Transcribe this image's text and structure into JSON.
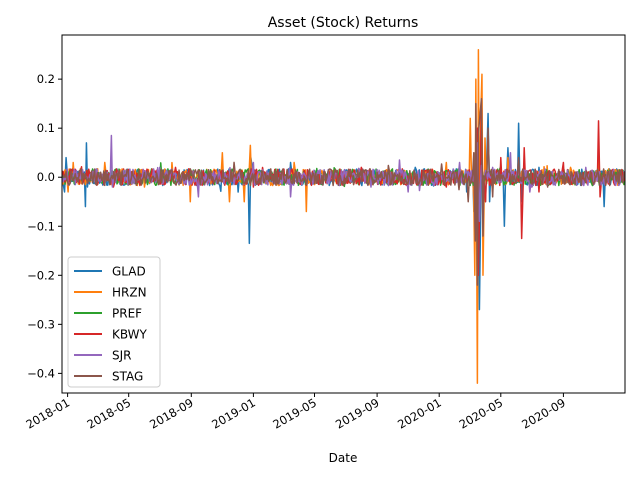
{
  "chart_data": {
    "type": "line",
    "title": "Asset (Stock) Returns",
    "xlabel": "Date",
    "ylabel": "",
    "x_range": [
      "2017-12-21",
      "2020-12-31"
    ],
    "ylim": [
      -0.44,
      0.29
    ],
    "x_ticks": [
      "2018-01",
      "2018-05",
      "2018-09",
      "2019-01",
      "2019-05",
      "2019-09",
      "2020-01",
      "2020-05",
      "2020-09"
    ],
    "y_ticks": [
      "0.2",
      "0.1",
      "0.0",
      "−0.1",
      "−0.2",
      "−0.3",
      "−0.4"
    ],
    "y_tick_values": [
      0.2,
      0.1,
      0.0,
      -0.1,
      -0.2,
      -0.3,
      -0.4
    ],
    "grid": false,
    "legend_position": "lower-left",
    "series": [
      {
        "name": "GLAD",
        "color": "#1f77b4",
        "points": [
          [
            "2017-12-21",
            0.0
          ],
          [
            "2017-12-26",
            -0.03
          ],
          [
            "2017-12-29",
            0.04
          ],
          [
            "2018-01-05",
            0.0
          ],
          [
            "2018-01-25",
            0.01
          ],
          [
            "2018-02-05",
            -0.06
          ],
          [
            "2018-02-07",
            0.07
          ],
          [
            "2018-02-09",
            -0.02
          ],
          [
            "2018-03-15",
            0.01
          ],
          [
            "2018-06-01",
            -0.01
          ],
          [
            "2018-09-01",
            0.01
          ],
          [
            "2018-12-24",
            -0.135
          ],
          [
            "2018-12-27",
            0.04
          ],
          [
            "2018-12-31",
            0.01
          ],
          [
            "2019-03-15",
            0.03
          ],
          [
            "2019-06-01",
            -0.01
          ],
          [
            "2019-09-01",
            0.01
          ],
          [
            "2019-11-15",
            0.02
          ],
          [
            "2019-12-31",
            0.0
          ],
          [
            "2020-02-24",
            -0.03
          ],
          [
            "2020-03-09",
            -0.07
          ],
          [
            "2020-03-12",
            0.05
          ],
          [
            "2020-03-16",
            -0.2
          ],
          [
            "2020-03-18",
            0.04
          ],
          [
            "2020-03-20",
            -0.27
          ],
          [
            "2020-03-24",
            0.05
          ],
          [
            "2020-03-26",
            0.0
          ],
          [
            "2020-04-01",
            -0.05
          ],
          [
            "2020-04-06",
            0.13
          ],
          [
            "2020-04-09",
            -0.05
          ],
          [
            "2020-04-30",
            0.02
          ],
          [
            "2020-05-08",
            -0.1
          ],
          [
            "2020-05-15",
            0.06
          ],
          [
            "2020-06-05",
            0.11
          ],
          [
            "2020-06-12",
            -0.05
          ],
          [
            "2020-07-15",
            0.02
          ],
          [
            "2020-09-01",
            0.01
          ],
          [
            "2020-11-20",
            -0.06
          ],
          [
            "2020-12-31",
            0.0
          ]
        ]
      },
      {
        "name": "HRZN",
        "color": "#ff7f0e",
        "points": [
          [
            "2017-12-21",
            0.0
          ],
          [
            "2018-01-02",
            -0.03
          ],
          [
            "2018-01-12",
            0.03
          ],
          [
            "2018-03-15",
            0.03
          ],
          [
            "2018-06-01",
            -0.02
          ],
          [
            "2018-08-30",
            -0.05
          ],
          [
            "2018-11-01",
            0.05
          ],
          [
            "2018-11-15",
            -0.05
          ],
          [
            "2018-12-14",
            -0.05
          ],
          [
            "2018-12-24",
            0.02
          ],
          [
            "2018-12-26",
            0.065
          ],
          [
            "2018-12-28",
            0.0
          ],
          [
            "2019-03-22",
            0.03
          ],
          [
            "2019-04-15",
            -0.07
          ],
          [
            "2019-06-01",
            0.01
          ],
          [
            "2019-09-01",
            -0.01
          ],
          [
            "2019-12-31",
            0.0
          ],
          [
            "2020-01-15",
            0.03
          ],
          [
            "2020-03-02",
            0.12
          ],
          [
            "2020-03-09",
            -0.05
          ],
          [
            "2020-03-11",
            -0.2
          ],
          [
            "2020-03-13",
            0.2
          ],
          [
            "2020-03-16",
            -0.42
          ],
          [
            "2020-03-18",
            0.26
          ],
          [
            "2020-03-20",
            -0.08
          ],
          [
            "2020-03-23",
            0.14
          ],
          [
            "2020-03-25",
            0.21
          ],
          [
            "2020-03-27",
            -0.2
          ],
          [
            "2020-03-31",
            0.08
          ],
          [
            "2020-04-15",
            -0.03
          ],
          [
            "2020-05-15",
            0.04
          ],
          [
            "2020-07-01",
            -0.02
          ],
          [
            "2020-09-15",
            0.02
          ],
          [
            "2020-11-09",
            0.04
          ],
          [
            "2020-12-31",
            0.0
          ]
        ]
      },
      {
        "name": "PREF",
        "color": "#2ca02c",
        "points": [
          [
            "2017-12-21",
            0.0
          ],
          [
            "2018-06-01",
            0.005
          ],
          [
            "2019-01-01",
            -0.005
          ],
          [
            "2019-09-01",
            0.005
          ],
          [
            "2020-03-12",
            -0.04
          ],
          [
            "2020-03-16",
            0.03
          ],
          [
            "2020-03-20",
            -0.05
          ],
          [
            "2020-04-15",
            0.01
          ],
          [
            "2020-12-31",
            0.0
          ]
        ]
      },
      {
        "name": "KBWY",
        "color": "#d62728",
        "points": [
          [
            "2017-12-21",
            0.0
          ],
          [
            "2018-04-01",
            -0.02
          ],
          [
            "2018-08-01",
            0.02
          ],
          [
            "2019-01-01",
            -0.02
          ],
          [
            "2019-08-01",
            0.02
          ],
          [
            "2020-01-15",
            -0.02
          ],
          [
            "2020-03-12",
            -0.12
          ],
          [
            "2020-03-16",
            0.1
          ],
          [
            "2020-03-18",
            -0.2
          ],
          [
            "2020-03-24",
            0.14
          ],
          [
            "2020-04-01",
            -0.05
          ],
          [
            "2020-05-01",
            0.04
          ],
          [
            "2020-06-11",
            -0.125
          ],
          [
            "2020-06-16",
            0.06
          ],
          [
            "2020-07-15",
            -0.03
          ],
          [
            "2020-09-01",
            0.03
          ],
          [
            "2020-11-09",
            0.115
          ],
          [
            "2020-11-12",
            -0.04
          ],
          [
            "2020-12-31",
            0.0
          ]
        ]
      },
      {
        "name": "SJR",
        "color": "#9467bd",
        "points": [
          [
            "2017-12-21",
            0.0
          ],
          [
            "2018-03-28",
            0.085
          ],
          [
            "2018-03-30",
            -0.02
          ],
          [
            "2018-07-01",
            0.02
          ],
          [
            "2018-09-15",
            -0.04
          ],
          [
            "2019-01-01",
            0.03
          ],
          [
            "2019-03-15",
            -0.04
          ],
          [
            "2019-08-20",
            -0.02
          ],
          [
            "2019-10-15",
            0.035
          ],
          [
            "2019-11-01",
            -0.03
          ],
          [
            "2020-02-10",
            0.03
          ],
          [
            "2020-03-12",
            -0.12
          ],
          [
            "2020-03-16",
            0.07
          ],
          [
            "2020-03-20",
            -0.09
          ],
          [
            "2020-04-15",
            0.02
          ],
          [
            "2020-05-20",
            0.05
          ],
          [
            "2020-07-01",
            -0.02
          ],
          [
            "2020-10-15",
            0.02
          ],
          [
            "2020-12-31",
            0.0
          ]
        ]
      },
      {
        "name": "STAG",
        "color": "#8c564b",
        "points": [
          [
            "2017-12-21",
            0.0
          ],
          [
            "2018-06-01",
            0.01
          ],
          [
            "2019-01-01",
            -0.01
          ],
          [
            "2019-09-01",
            0.01
          ],
          [
            "2020-02-27",
            -0.05
          ],
          [
            "2020-03-09",
            0.05
          ],
          [
            "2020-03-12",
            -0.13
          ],
          [
            "2020-03-13",
            0.15
          ],
          [
            "2020-03-16",
            -0.22
          ],
          [
            "2020-03-18",
            0.09
          ],
          [
            "2020-03-24",
            0.16
          ],
          [
            "2020-03-27",
            -0.12
          ],
          [
            "2020-04-06",
            0.1
          ],
          [
            "2020-04-15",
            -0.04
          ],
          [
            "2020-06-05",
            0.04
          ],
          [
            "2020-08-01",
            -0.02
          ],
          [
            "2020-12-31",
            0.0
          ]
        ]
      }
    ]
  }
}
